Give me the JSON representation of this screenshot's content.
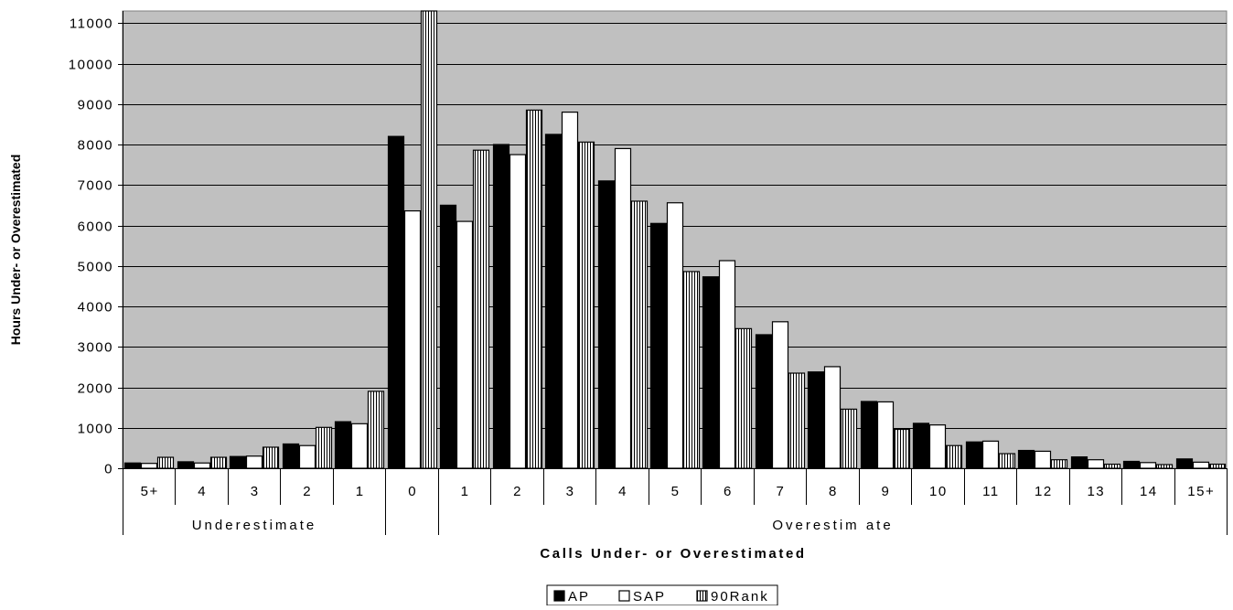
{
  "chart_data": {
    "type": "bar",
    "xlabel": "Calls Under- or Overestimated",
    "ylabel": "Hours Under- or Overestimated",
    "ylim": [
      0,
      11000
    ],
    "yticks": [
      "0",
      "1000",
      "2000",
      "3000",
      "4000",
      "5000",
      "6000",
      "7000",
      "8000",
      "9000",
      "10000",
      "11000"
    ],
    "categories": [
      "5+",
      "4",
      "3",
      "2",
      "1",
      "0",
      "1",
      "2",
      "3",
      "4",
      "5",
      "6",
      "7",
      "8",
      "9",
      "10",
      "11",
      "12",
      "13",
      "14",
      "15+"
    ],
    "groups": [
      {
        "label": "Underestimate",
        "start": 0,
        "end": 4
      },
      {
        "label": "",
        "start": 5,
        "end": 5
      },
      {
        "label": "Overestim ate",
        "start": 6,
        "end": 20
      }
    ],
    "series": [
      {
        "name": "AP",
        "color": "#000000",
        "pattern": "solid-black",
        "values": [
          130,
          160,
          290,
          600,
          1150,
          8200,
          6500,
          8000,
          8250,
          7100,
          6050,
          4730,
          3300,
          2380,
          1650,
          1110,
          650,
          440,
          280,
          170,
          230
        ]
      },
      {
        "name": "SAP",
        "color": "#ffffff",
        "pattern": "solid-white",
        "values": [
          120,
          130,
          300,
          560,
          1100,
          6360,
          6100,
          7750,
          8800,
          7900,
          6560,
          5130,
          3620,
          2510,
          1640,
          1070,
          670,
          420,
          210,
          140,
          150
        ]
      },
      {
        "name": "90Rank",
        "color": "#ffffff",
        "pattern": "vertical-stripes",
        "values": [
          270,
          270,
          520,
          1010,
          1900,
          11300,
          7860,
          8850,
          8060,
          6600,
          4860,
          3450,
          2350,
          1460,
          960,
          560,
          360,
          210,
          100,
          90,
          100
        ]
      }
    ],
    "plot_background": "#c0c0c0",
    "grid": true,
    "legend_position": "bottom-center"
  }
}
